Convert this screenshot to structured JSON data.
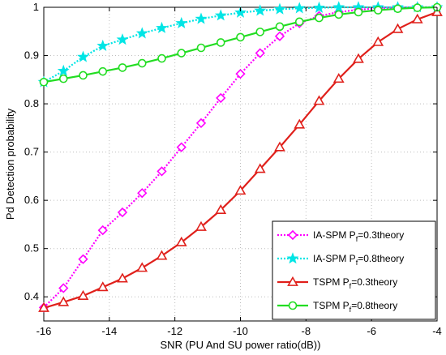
{
  "chart_data": {
    "type": "line",
    "title": "",
    "xlabel": "SNR (PU And SU power ratio(dB))",
    "ylabel": "Pd Detection probability",
    "xlim": [
      -16,
      -4
    ],
    "ylim": [
      0.35,
      1
    ],
    "xticks": [
      -16,
      -14,
      -12,
      -10,
      -8,
      -6,
      -4
    ],
    "yticks": [
      0.4,
      0.5,
      0.6,
      0.7,
      0.8,
      0.9,
      1
    ],
    "xtick_labels": [
      "-16",
      "-14",
      "-12",
      "-10",
      "-8",
      "-6",
      "-4"
    ],
    "ytick_labels": [
      "0.4",
      "0.5",
      "0.6",
      "0.7",
      "0.8",
      "0.9",
      "1"
    ],
    "grid": true,
    "legend_position": "bottom-right",
    "x": [
      -16,
      -15.4,
      -14.8,
      -14.2,
      -13.6,
      -13,
      -12.4,
      -11.8,
      -11.2,
      -10.6,
      -10,
      -9.4,
      -8.8,
      -8.2,
      -7.6,
      -7,
      -6.4,
      -5.8,
      -5.2,
      -4.6,
      -4
    ],
    "series": [
      {
        "name": "IA-SPM P",
        "name_sub": "f",
        "name_suffix": "=0.3theory",
        "color": "#ff00ff",
        "marker": "diamond",
        "dash": "dotted",
        "values": [
          0.378,
          0.418,
          0.478,
          0.538,
          0.575,
          0.615,
          0.66,
          0.71,
          0.76,
          0.812,
          0.862,
          0.905,
          0.94,
          0.967,
          0.982,
          0.99,
          0.995,
          0.998,
          0.999,
          1.0,
          1.0
        ]
      },
      {
        "name": "IA-SPM P",
        "name_sub": "f",
        "name_suffix": "=0.8theory",
        "color": "#00e5e5",
        "marker": "star",
        "dash": "dotted",
        "values": [
          0.845,
          0.868,
          0.897,
          0.92,
          0.933,
          0.946,
          0.957,
          0.967,
          0.976,
          0.983,
          0.989,
          0.993,
          0.996,
          0.998,
          0.999,
          1.0,
          1.0,
          1.0,
          1.0,
          1.0,
          1.0
        ]
      },
      {
        "name": "TSPM P",
        "name_sub": "f",
        "name_suffix": "=0.3theory",
        "color": "#e0201b",
        "marker": "triangle",
        "dash": "solid",
        "values": [
          0.377,
          0.389,
          0.402,
          0.42,
          0.438,
          0.46,
          0.485,
          0.513,
          0.545,
          0.58,
          0.62,
          0.665,
          0.71,
          0.757,
          0.806,
          0.852,
          0.893,
          0.928,
          0.955,
          0.975,
          0.99
        ]
      },
      {
        "name": "TSPM P",
        "name_sub": "f",
        "name_suffix": "=0.8theory",
        "color": "#22dd22",
        "marker": "circle",
        "dash": "solid",
        "values": [
          0.845,
          0.852,
          0.859,
          0.867,
          0.875,
          0.884,
          0.894,
          0.905,
          0.916,
          0.927,
          0.938,
          0.949,
          0.96,
          0.97,
          0.978,
          0.985,
          0.99,
          0.994,
          0.997,
          0.999,
          1.0
        ]
      }
    ]
  }
}
